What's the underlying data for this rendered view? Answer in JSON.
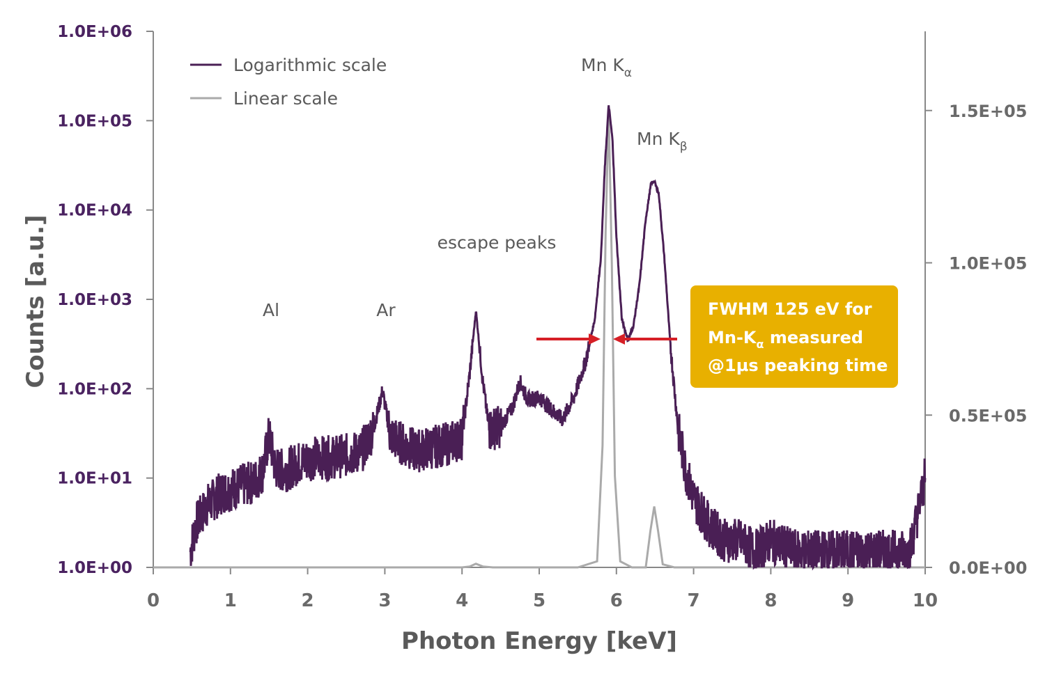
{
  "colors": {
    "log_series": "#4a1f55",
    "linear_series": "#aaaaaa",
    "left_axis_text": "#4a2260",
    "right_axis_text": "#6a6a6a",
    "annotation_box": "#e8b000",
    "arrow": "#d61f26"
  },
  "chart_data": {
    "type": "line",
    "xlabel": "Photon Energy [keV]",
    "ylabel": "Counts [a.u.]",
    "xlim": [
      0,
      10
    ],
    "x_ticks": [
      "0",
      "1",
      "2",
      "3",
      "4",
      "5",
      "6",
      "7",
      "8",
      "9",
      "10"
    ],
    "y_left_scale": "log",
    "y_left_lim": [
      1,
      1000000
    ],
    "y_left_ticks": [
      "1.0E+00",
      "1.0E+01",
      "1.0E+02",
      "1.0E+03",
      "1.0E+04",
      "1.0E+05",
      "1.0E+06"
    ],
    "y_right_scale": "linear",
    "y_right_lim": [
      0,
      176000
    ],
    "y_right_ticks": [
      "0.0E+00",
      "0.5E+05",
      "1.0E+05",
      "1.5E+05"
    ],
    "grid": false,
    "legend_position": "top-left",
    "series": [
      {
        "name": "Logarithmic scale",
        "axis": "left",
        "x": [
          0.48,
          0.55,
          0.7,
          0.9,
          1.1,
          1.3,
          1.42,
          1.5,
          1.58,
          1.7,
          1.9,
          2.1,
          2.3,
          2.5,
          2.7,
          2.85,
          2.97,
          3.07,
          3.2,
          3.4,
          3.6,
          3.8,
          4.0,
          4.1,
          4.18,
          4.27,
          4.35,
          4.5,
          4.65,
          4.75,
          4.85,
          5.0,
          5.15,
          5.3,
          5.45,
          5.6,
          5.72,
          5.8,
          5.85,
          5.9,
          5.95,
          6.0,
          6.07,
          6.15,
          6.22,
          6.3,
          6.38,
          6.45,
          6.49,
          6.55,
          6.62,
          6.7,
          6.8,
          6.9,
          7.0,
          7.2,
          7.4,
          7.6,
          7.8,
          8.0,
          8.3,
          8.6,
          9.0,
          9.4,
          9.8,
          10.0
        ],
        "y": [
          1.5,
          3.0,
          5.0,
          7.0,
          8.0,
          9.0,
          12.0,
          30.0,
          13.0,
          12.0,
          15.0,
          17.0,
          17.0,
          18.0,
          20.0,
          35.0,
          95.0,
          30.0,
          25.0,
          20.0,
          22.0,
          24.0,
          28.0,
          150.0,
          750.0,
          120.0,
          35.0,
          38.0,
          60.0,
          120.0,
          75.0,
          80.0,
          60.0,
          45.0,
          80.0,
          200.0,
          600.0,
          3000.0,
          30000.0,
          150000.0,
          60000.0,
          5000.0,
          600.0,
          350.0,
          500.0,
          1500.0,
          8000.0,
          20000.0,
          21000.0,
          15000.0,
          3000.0,
          300.0,
          35.0,
          12.0,
          6.0,
          3.0,
          2.0,
          2.0,
          1.5,
          2.0,
          1.5,
          1.5,
          1.5,
          1.5,
          1.5,
          10.0
        ]
      },
      {
        "name": "Linear scale",
        "axis": "right",
        "x": [
          0,
          4.0,
          4.1,
          4.18,
          4.27,
          4.4,
          5.5,
          5.75,
          5.82,
          5.86,
          5.9,
          5.94,
          5.98,
          6.05,
          6.2,
          6.38,
          6.44,
          6.49,
          6.54,
          6.6,
          6.75,
          10.0
        ],
        "y": [
          0,
          0,
          300,
          1200,
          300,
          0,
          0,
          2000,
          40000,
          110000,
          150000,
          100000,
          30000,
          2000,
          0,
          0,
          12000,
          20000,
          12000,
          1000,
          0,
          0
        ]
      }
    ],
    "annotations": {
      "peak_Al": "Al",
      "peak_Ar": "Ar",
      "escape": "escape peaks",
      "mn_ka_base": "Mn K",
      "mn_ka_sub": "α",
      "mn_kb_base": "Mn K",
      "mn_kb_sub": "β",
      "box_line1": "FWHM 125 eV for",
      "box_line2_base": "Mn-K",
      "box_line2_sub": "α",
      "box_line2_rest": " measured",
      "box_line3": "@1µs peaking time"
    }
  }
}
